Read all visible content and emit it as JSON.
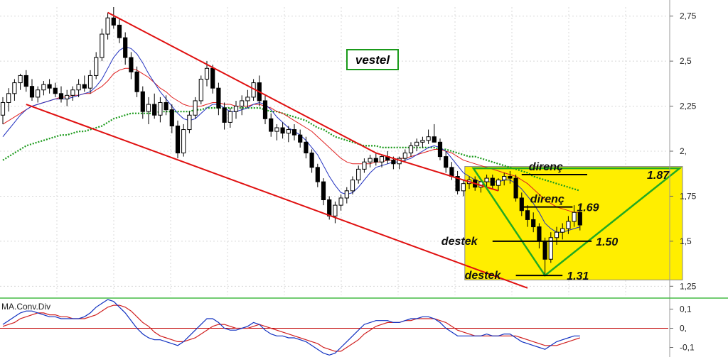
{
  "chart_data": {
    "type": "candlestick",
    "title": "vestel",
    "y_ticks": [
      "2,75",
      "2,5",
      "2,25",
      "2,",
      "1,75",
      "1,5",
      "1,25"
    ],
    "ylim": [
      1.2,
      2.8
    ],
    "grid": true,
    "candles": [
      [
        2.2,
        2.3,
        2.15,
        2.27
      ],
      [
        2.27,
        2.35,
        2.22,
        2.32
      ],
      [
        2.32,
        2.4,
        2.28,
        2.38
      ],
      [
        2.38,
        2.43,
        2.34,
        2.42
      ],
      [
        2.42,
        2.45,
        2.33,
        2.36
      ],
      [
        2.36,
        2.4,
        2.28,
        2.3
      ],
      [
        2.3,
        2.36,
        2.27,
        2.34
      ],
      [
        2.34,
        2.39,
        2.31,
        2.37
      ],
      [
        2.37,
        2.4,
        2.32,
        2.35
      ],
      [
        2.35,
        2.38,
        2.3,
        2.32
      ],
      [
        2.32,
        2.36,
        2.27,
        2.29
      ],
      [
        2.29,
        2.34,
        2.25,
        2.31
      ],
      [
        2.31,
        2.36,
        2.28,
        2.34
      ],
      [
        2.34,
        2.4,
        2.3,
        2.37
      ],
      [
        2.37,
        2.42,
        2.33,
        2.35
      ],
      [
        2.35,
        2.45,
        2.32,
        2.42
      ],
      [
        2.42,
        2.55,
        2.4,
        2.52
      ],
      [
        2.52,
        2.68,
        2.5,
        2.65
      ],
      [
        2.65,
        2.77,
        2.62,
        2.74
      ],
      [
        2.74,
        2.8,
        2.68,
        2.7
      ],
      [
        2.7,
        2.74,
        2.6,
        2.63
      ],
      [
        2.63,
        2.66,
        2.48,
        2.52
      ],
      [
        2.52,
        2.55,
        2.4,
        2.44
      ],
      [
        2.44,
        2.47,
        2.3,
        2.33
      ],
      [
        2.33,
        2.36,
        2.18,
        2.22
      ],
      [
        2.22,
        2.3,
        2.15,
        2.26
      ],
      [
        2.26,
        2.32,
        2.18,
        2.2
      ],
      [
        2.2,
        2.3,
        2.16,
        2.27
      ],
      [
        2.27,
        2.31,
        2.2,
        2.23
      ],
      [
        2.23,
        2.26,
        2.1,
        2.14
      ],
      [
        2.14,
        2.17,
        1.96,
        1.99
      ],
      [
        1.99,
        2.15,
        1.97,
        2.12
      ],
      [
        2.12,
        2.22,
        2.1,
        2.2
      ],
      [
        2.2,
        2.3,
        2.18,
        2.28
      ],
      [
        2.28,
        2.42,
        2.26,
        2.4
      ],
      [
        2.4,
        2.5,
        2.36,
        2.46
      ],
      [
        2.46,
        2.48,
        2.32,
        2.35
      ],
      [
        2.35,
        2.38,
        2.2,
        2.24
      ],
      [
        2.24,
        2.27,
        2.12,
        2.16
      ],
      [
        2.16,
        2.24,
        2.13,
        2.22
      ],
      [
        2.22,
        2.28,
        2.18,
        2.25
      ],
      [
        2.25,
        2.31,
        2.2,
        2.28
      ],
      [
        2.28,
        2.34,
        2.24,
        2.3
      ],
      [
        2.3,
        2.4,
        2.28,
        2.38
      ],
      [
        2.38,
        2.42,
        2.25,
        2.28
      ],
      [
        2.28,
        2.31,
        2.15,
        2.18
      ],
      [
        2.18,
        2.21,
        2.08,
        2.11
      ],
      [
        2.11,
        2.15,
        2.06,
        2.13
      ],
      [
        2.13,
        2.16,
        2.07,
        2.1
      ],
      [
        2.1,
        2.14,
        2.05,
        2.12
      ],
      [
        2.12,
        2.15,
        2.06,
        2.09
      ],
      [
        2.09,
        2.12,
        2.02,
        2.05
      ],
      [
        2.05,
        2.08,
        1.96,
        1.99
      ],
      [
        1.99,
        2.01,
        1.88,
        1.91
      ],
      [
        1.91,
        1.93,
        1.8,
        1.83
      ],
      [
        1.83,
        1.85,
        1.7,
        1.73
      ],
      [
        1.73,
        1.75,
        1.62,
        1.64
      ],
      [
        1.64,
        1.72,
        1.6,
        1.7
      ],
      [
        1.7,
        1.76,
        1.67,
        1.74
      ],
      [
        1.74,
        1.8,
        1.71,
        1.78
      ],
      [
        1.78,
        1.86,
        1.76,
        1.84
      ],
      [
        1.84,
        1.92,
        1.82,
        1.9
      ],
      [
        1.9,
        1.96,
        1.88,
        1.94
      ],
      [
        1.94,
        1.98,
        1.91,
        1.96
      ],
      [
        1.96,
        1.99,
        1.92,
        1.94
      ],
      [
        1.94,
        1.98,
        1.91,
        1.97
      ],
      [
        1.97,
        2.0,
        1.93,
        1.95
      ],
      [
        1.95,
        1.97,
        1.9,
        1.93
      ],
      [
        1.93,
        1.97,
        1.9,
        1.96
      ],
      [
        1.96,
        2.01,
        1.94,
        1.99
      ],
      [
        1.99,
        2.05,
        1.97,
        2.03
      ],
      [
        2.03,
        2.07,
        2.0,
        2.05
      ],
      [
        2.05,
        2.08,
        2.02,
        2.06
      ],
      [
        2.06,
        2.12,
        2.04,
        2.08
      ],
      [
        2.08,
        2.15,
        2.05,
        2.05
      ],
      [
        2.05,
        2.07,
        1.95,
        1.97
      ],
      [
        1.97,
        2.0,
        1.88,
        1.91
      ],
      [
        1.91,
        1.94,
        1.84,
        1.86
      ],
      [
        1.86,
        1.89,
        1.76,
        1.78
      ],
      [
        1.78,
        1.84,
        1.75,
        1.82
      ],
      [
        1.82,
        1.86,
        1.79,
        1.84
      ],
      [
        1.84,
        1.86,
        1.78,
        1.8
      ],
      [
        1.8,
        1.84,
        1.77,
        1.83
      ],
      [
        1.83,
        1.87,
        1.8,
        1.85
      ],
      [
        1.85,
        1.87,
        1.79,
        1.81
      ],
      [
        1.81,
        1.85,
        1.78,
        1.84
      ],
      [
        1.84,
        1.88,
        1.81,
        1.86
      ],
      [
        1.86,
        1.89,
        1.82,
        1.85
      ],
      [
        1.85,
        1.87,
        1.72,
        1.74
      ],
      [
        1.74,
        1.77,
        1.64,
        1.67
      ],
      [
        1.67,
        1.7,
        1.58,
        1.62
      ],
      [
        1.62,
        1.66,
        1.55,
        1.58
      ],
      [
        1.58,
        1.6,
        1.46,
        1.5
      ],
      [
        1.5,
        1.52,
        1.31,
        1.4
      ],
      [
        1.4,
        1.55,
        1.38,
        1.52
      ],
      [
        1.52,
        1.58,
        1.48,
        1.55
      ],
      [
        1.55,
        1.6,
        1.51,
        1.57
      ],
      [
        1.57,
        1.64,
        1.54,
        1.61
      ],
      [
        1.61,
        1.7,
        1.58,
        1.66
      ],
      [
        1.66,
        1.7,
        1.56,
        1.59
      ]
    ],
    "ma_blue": [
      2.08,
      2.12,
      2.16,
      2.2,
      2.23,
      2.25,
      2.26,
      2.27,
      2.28,
      2.29,
      2.29,
      2.29,
      2.3,
      2.31,
      2.32,
      2.33,
      2.36,
      2.4,
      2.46,
      2.52,
      2.56,
      2.58,
      2.57,
      2.54,
      2.49,
      2.43,
      2.38,
      2.33,
      2.29,
      2.25,
      2.21,
      2.18,
      2.17,
      2.18,
      2.21,
      2.24,
      2.26,
      2.26,
      2.24,
      2.22,
      2.22,
      2.23,
      2.24,
      2.26,
      2.27,
      2.26,
      2.23,
      2.19,
      2.16,
      2.13,
      2.11,
      2.09,
      2.06,
      2.02,
      1.98,
      1.92,
      1.86,
      1.81,
      1.77,
      1.76,
      1.77,
      1.8,
      1.84,
      1.88,
      1.91,
      1.92,
      1.93,
      1.94,
      1.94,
      1.95,
      1.96,
      1.98,
      2.0,
      2.02,
      2.03,
      2.02,
      2.0,
      1.96,
      1.92,
      1.88,
      1.86,
      1.84,
      1.83,
      1.83,
      1.83,
      1.83,
      1.84,
      1.84,
      1.82,
      1.79,
      1.75,
      1.71,
      1.66,
      1.6,
      1.57,
      1.55,
      1.55,
      1.56,
      1.57,
      1.58
    ],
    "ma_red": [
      2.15,
      2.17,
      2.19,
      2.21,
      2.23,
      2.25,
      2.26,
      2.27,
      2.28,
      2.29,
      2.3,
      2.3,
      2.31,
      2.31,
      2.32,
      2.32,
      2.34,
      2.36,
      2.39,
      2.43,
      2.45,
      2.46,
      2.46,
      2.45,
      2.43,
      2.41,
      2.38,
      2.35,
      2.33,
      2.3,
      2.28,
      2.26,
      2.25,
      2.25,
      2.25,
      2.26,
      2.27,
      2.27,
      2.26,
      2.26,
      2.25,
      2.25,
      2.25,
      2.26,
      2.26,
      2.25,
      2.24,
      2.22,
      2.21,
      2.19,
      2.17,
      2.15,
      2.13,
      2.11,
      2.08,
      2.05,
      2.02,
      1.99,
      1.96,
      1.94,
      1.93,
      1.93,
      1.93,
      1.93,
      1.94,
      1.94,
      1.95,
      1.95,
      1.96,
      1.96,
      1.97,
      1.98,
      1.99,
      2.0,
      2.01,
      2.01,
      2.0,
      1.99,
      1.97,
      1.95,
      1.94,
      1.93,
      1.92,
      1.91,
      1.9,
      1.89,
      1.88,
      1.87,
      1.86,
      1.84,
      1.82,
      1.79,
      1.76,
      1.73,
      1.71,
      1.69,
      1.68,
      1.67,
      1.66,
      1.66
    ],
    "ma_green": [
      1.95,
      1.97,
      1.99,
      2.01,
      2.03,
      2.04,
      2.05,
      2.06,
      2.07,
      2.08,
      2.09,
      2.09,
      2.1,
      2.11,
      2.11,
      2.12,
      2.13,
      2.14,
      2.16,
      2.18,
      2.19,
      2.2,
      2.21,
      2.21,
      2.21,
      2.21,
      2.21,
      2.22,
      2.22,
      2.22,
      2.22,
      2.22,
      2.22,
      2.23,
      2.23,
      2.24,
      2.24,
      2.24,
      2.24,
      2.24,
      2.24,
      2.24,
      2.24,
      2.24,
      2.24,
      2.23,
      2.22,
      2.22,
      2.21,
      2.2,
      2.19,
      2.18,
      2.17,
      2.15,
      2.13,
      2.12,
      2.1,
      2.08,
      2.07,
      2.06,
      2.05,
      2.04,
      2.03,
      2.03,
      2.03,
      2.02,
      2.02,
      2.02,
      2.02,
      2.02,
      2.02,
      2.02,
      2.02,
      2.02,
      2.02,
      2.01,
      2.01,
      2.0,
      1.99,
      1.98,
      1.97,
      1.97,
      1.96,
      1.95,
      1.94,
      1.93,
      1.92,
      1.91,
      1.9,
      1.89,
      1.88,
      1.86,
      1.85,
      1.84,
      1.83,
      1.82,
      1.81,
      1.8,
      1.79,
      1.78
    ],
    "channel": {
      "upper": {
        "x": [
          18,
          64
        ],
        "y": [
          2.77,
          1.99
        ],
        "extend_to": 85,
        "extend_y": 1.78
      },
      "lower": {
        "x": [
          4,
          90
        ],
        "y": [
          2.26,
          1.24
        ]
      }
    },
    "levels": [
      {
        "label": "direnç",
        "value": "1.87",
        "y": 1.87
      },
      {
        "label": "direnç",
        "value": "1.69",
        "y": 1.69
      },
      {
        "label": "destek",
        "value": "1.50",
        "y": 1.5
      },
      {
        "label": "destek",
        "value": "1.31",
        "y": 1.31
      }
    ],
    "macd": {
      "label": "MA.Conv.Div",
      "y_ticks": [
        "0,1",
        "0,",
        "-0,1"
      ],
      "ylim": [
        -0.15,
        0.15
      ],
      "macd": [
        0.02,
        0.04,
        0.06,
        0.08,
        0.09,
        0.09,
        0.08,
        0.07,
        0.06,
        0.06,
        0.05,
        0.05,
        0.05,
        0.05,
        0.06,
        0.08,
        0.11,
        0.13,
        0.15,
        0.14,
        0.11,
        0.08,
        0.04,
        0.0,
        -0.03,
        -0.05,
        -0.06,
        -0.06,
        -0.07,
        -0.08,
        -0.09,
        -0.07,
        -0.04,
        -0.01,
        0.02,
        0.05,
        0.05,
        0.03,
        0.0,
        -0.01,
        -0.01,
        0.0,
        0.01,
        0.03,
        0.02,
        -0.01,
        -0.03,
        -0.04,
        -0.04,
        -0.05,
        -0.05,
        -0.06,
        -0.07,
        -0.09,
        -0.11,
        -0.13,
        -0.14,
        -0.13,
        -0.1,
        -0.07,
        -0.04,
        -0.01,
        0.02,
        0.03,
        0.04,
        0.04,
        0.04,
        0.03,
        0.03,
        0.04,
        0.05,
        0.05,
        0.06,
        0.06,
        0.05,
        0.03,
        0.0,
        -0.02,
        -0.04,
        -0.04,
        -0.04,
        -0.04,
        -0.04,
        -0.03,
        -0.04,
        -0.04,
        -0.03,
        -0.03,
        -0.05,
        -0.07,
        -0.08,
        -0.09,
        -0.1,
        -0.11,
        -0.09,
        -0.07,
        -0.06,
        -0.05,
        -0.04,
        -0.04
      ],
      "signal": [
        0.01,
        0.02,
        0.03,
        0.05,
        0.06,
        0.07,
        0.08,
        0.08,
        0.07,
        0.07,
        0.06,
        0.06,
        0.05,
        0.05,
        0.05,
        0.06,
        0.07,
        0.09,
        0.11,
        0.12,
        0.12,
        0.11,
        0.09,
        0.06,
        0.03,
        0.01,
        -0.02,
        -0.04,
        -0.05,
        -0.06,
        -0.07,
        -0.07,
        -0.06,
        -0.05,
        -0.03,
        -0.01,
        0.01,
        0.02,
        0.02,
        0.01,
        0.0,
        0.0,
        0.0,
        0.01,
        0.02,
        0.01,
        0.0,
        -0.01,
        -0.02,
        -0.03,
        -0.04,
        -0.05,
        -0.06,
        -0.07,
        -0.08,
        -0.1,
        -0.11,
        -0.12,
        -0.12,
        -0.1,
        -0.08,
        -0.06,
        -0.03,
        -0.01,
        0.01,
        0.02,
        0.03,
        0.03,
        0.03,
        0.04,
        0.04,
        0.05,
        0.05,
        0.05,
        0.05,
        0.04,
        0.03,
        0.01,
        -0.01,
        -0.02,
        -0.03,
        -0.04,
        -0.04,
        -0.04,
        -0.04,
        -0.04,
        -0.04,
        -0.04,
        -0.04,
        -0.05,
        -0.06,
        -0.07,
        -0.08,
        -0.09,
        -0.09,
        -0.09,
        -0.08,
        -0.07,
        -0.06,
        -0.05
      ]
    },
    "colors": {
      "channel": "#e01010",
      "ma_blue": "#2030c0",
      "ma_red": "#e02020",
      "ma_green": "#1a9a1a",
      "triangle": "#22aa22",
      "highlight": "#ffee00",
      "candle": "#000000",
      "macd_line": "#1030c0",
      "signal_line": "#d02020",
      "zero_line": "#c00000",
      "separator": "#44bb44"
    }
  }
}
